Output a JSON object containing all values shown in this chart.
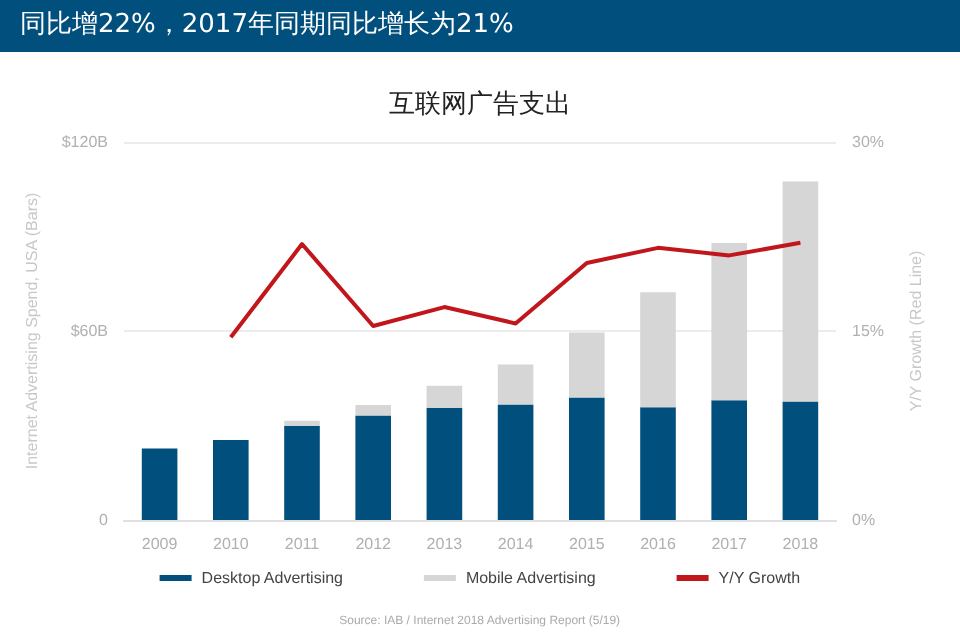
{
  "chart_data": {
    "type": "bar",
    "title": "互联网广告支出",
    "subtitle": "同比增22%，2017年同期同比增长为21%",
    "ylabel": "Internet Advertising Spend, USA (Bars)",
    "y2label": "Y/Y Growth (Red Line)",
    "categories": [
      "2009",
      "2010",
      "2011",
      "2012",
      "2013",
      "2014",
      "2015",
      "2016",
      "2017",
      "2018"
    ],
    "stacked": true,
    "series": [
      {
        "name": "Desktop Advertising",
        "color": "#004f7c",
        "values": [
          22.7,
          25.4,
          29.9,
          33.2,
          35.6,
          36.7,
          38.9,
          35.8,
          38.0,
          37.6
        ]
      },
      {
        "name": "Mobile Advertising",
        "color": "#d6d6d6",
        "values": [
          0,
          0,
          1.6,
          3.3,
          7.0,
          12.7,
          20.6,
          36.5,
          49.9,
          69.9
        ]
      },
      {
        "name": "Y/Y Growth",
        "type": "line",
        "axis": "y2",
        "color": "#c0161c",
        "values": [
          null,
          14.5,
          21.9,
          15.4,
          16.9,
          15.6,
          20.4,
          21.6,
          21,
          22
        ]
      }
    ],
    "ylim": [
      0,
      120
    ],
    "yticks": [
      {
        "value": 0,
        "label": "0"
      },
      {
        "value": 60,
        "label": "$60B"
      },
      {
        "value": 120,
        "label": "$120B"
      }
    ],
    "y2lim": [
      0,
      30
    ],
    "y2ticks": [
      {
        "value": 0,
        "label": "0%"
      },
      {
        "value": 15,
        "label": "15%"
      },
      {
        "value": 30,
        "label": "30%"
      }
    ],
    "grid": "y",
    "legend": "bottom",
    "marker": "none",
    "annotations": [
      "Source: IAB / Internet 2018 Advertising Report (5/19)"
    ]
  }
}
